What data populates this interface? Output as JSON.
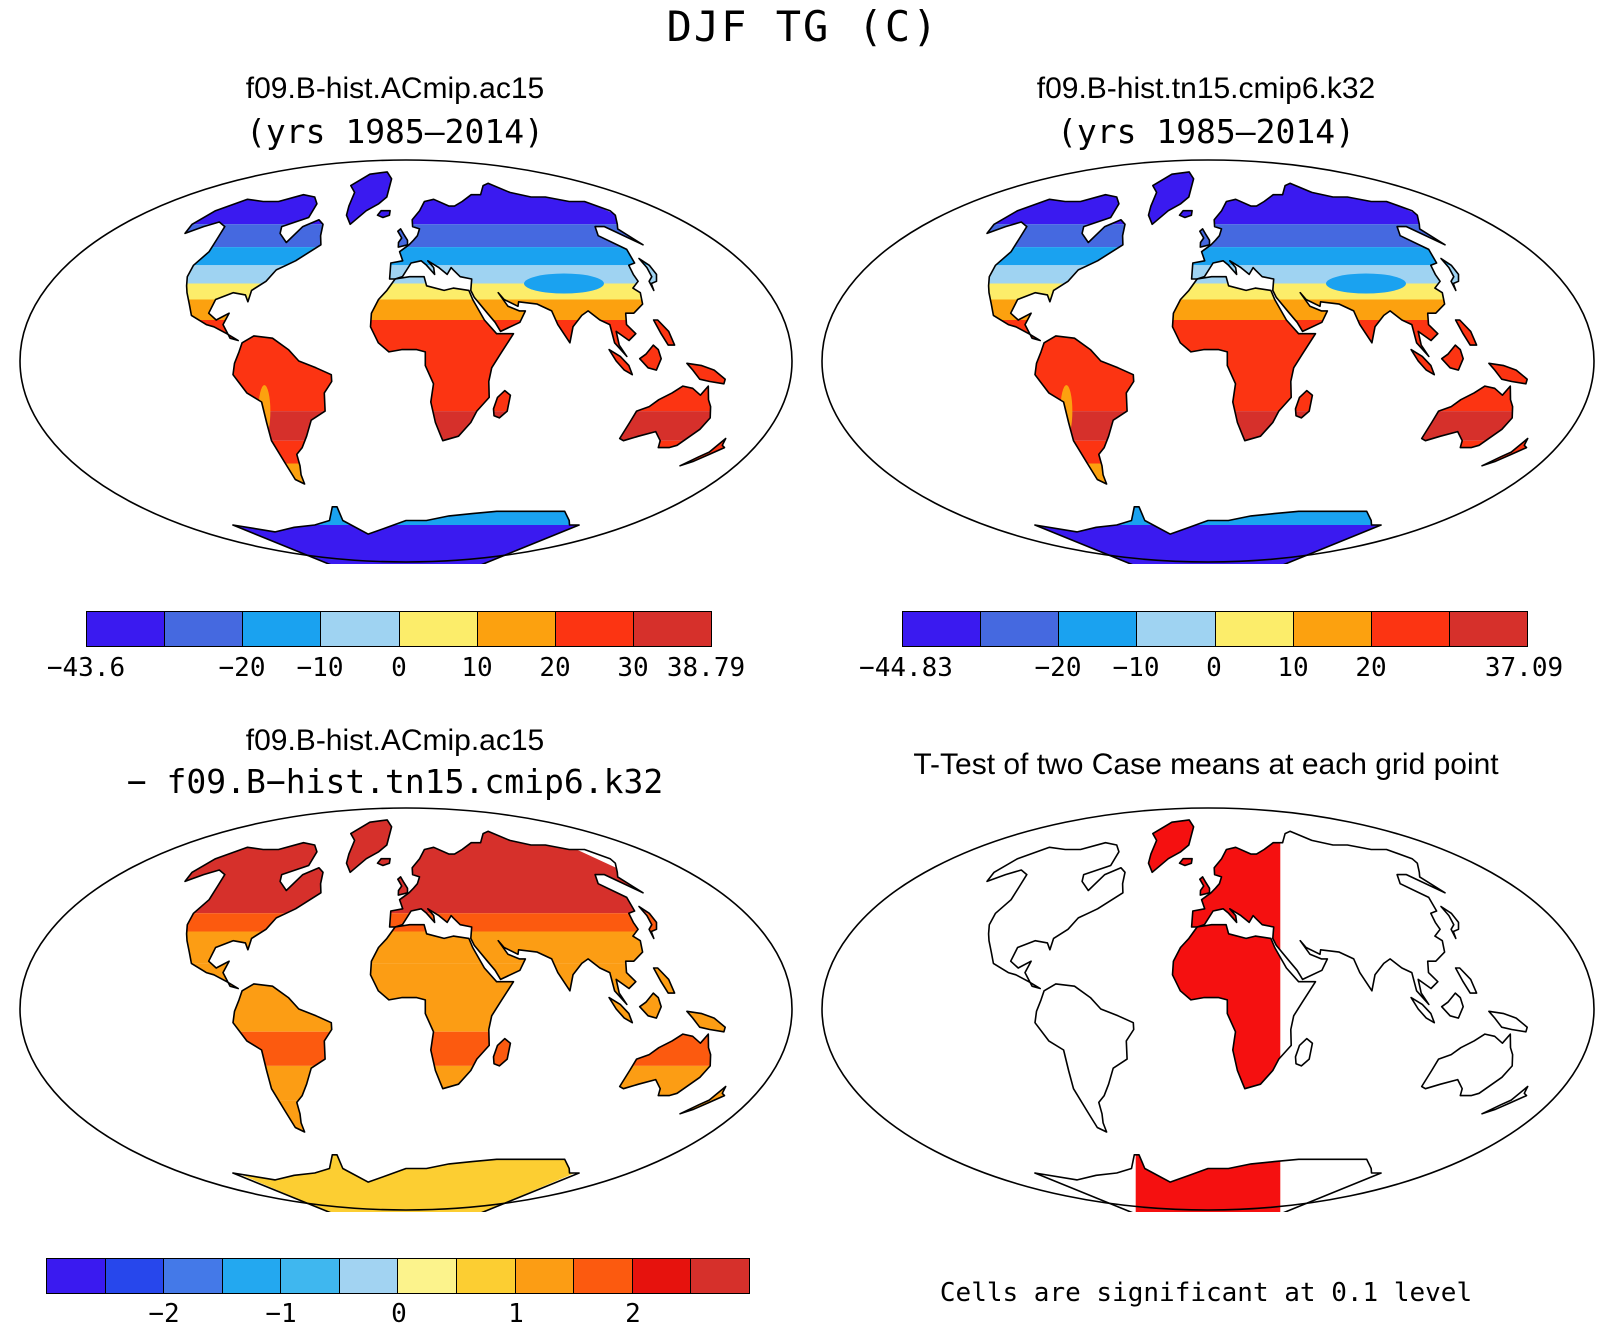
{
  "figure": {
    "title": "DJF TG (C)"
  },
  "panels": {
    "p1": {
      "title": "f09.B-hist.ACmip.ac15",
      "subtitle": "(yrs 1985–2014)",
      "colors": [
        "#3a1af0",
        "#4569e0",
        "#1aa2f0",
        "#9fd3f2",
        "#fced6a",
        "#fca10f",
        "#fc3412",
        "#d6302b"
      ],
      "tick_labels": [
        "−43.6",
        "−20",
        "−10",
        "0",
        "10",
        "20",
        "30",
        "38.79"
      ]
    },
    "p2": {
      "title": "f09.B-hist.tn15.cmip6.k32",
      "subtitle": "(yrs 1985–2014)",
      "colors": [
        "#3a1af0",
        "#4569e0",
        "#1aa2f0",
        "#9fd3f2",
        "#fced6a",
        "#fca10f",
        "#fc3412",
        "#d6302b"
      ],
      "tick_labels": [
        "−44.83",
        "−20",
        "−10",
        "0",
        "10",
        "20",
        "37.09"
      ]
    },
    "p3": {
      "title": "f09.B-hist.ACmip.ac15",
      "subtitle": "− f09.B−hist.tn15.cmip6.k32",
      "colors": [
        "#3a1af0",
        "#2747ec",
        "#4479e8",
        "#23a8f0",
        "#3fb7ef",
        "#a2d3f2",
        "#fcf38c",
        "#fcce32",
        "#fc9d14",
        "#fc5a0f",
        "#e6120d",
        "#d6302b"
      ],
      "tick_labels": [
        "−2",
        "−1",
        "0",
        "1",
        "2"
      ]
    },
    "p4": {
      "title": "T-Test of two Case means at each grid point",
      "note": "Cells are significant at 0.1 level",
      "colors": {
        "significant": "#f51010"
      }
    }
  }
}
